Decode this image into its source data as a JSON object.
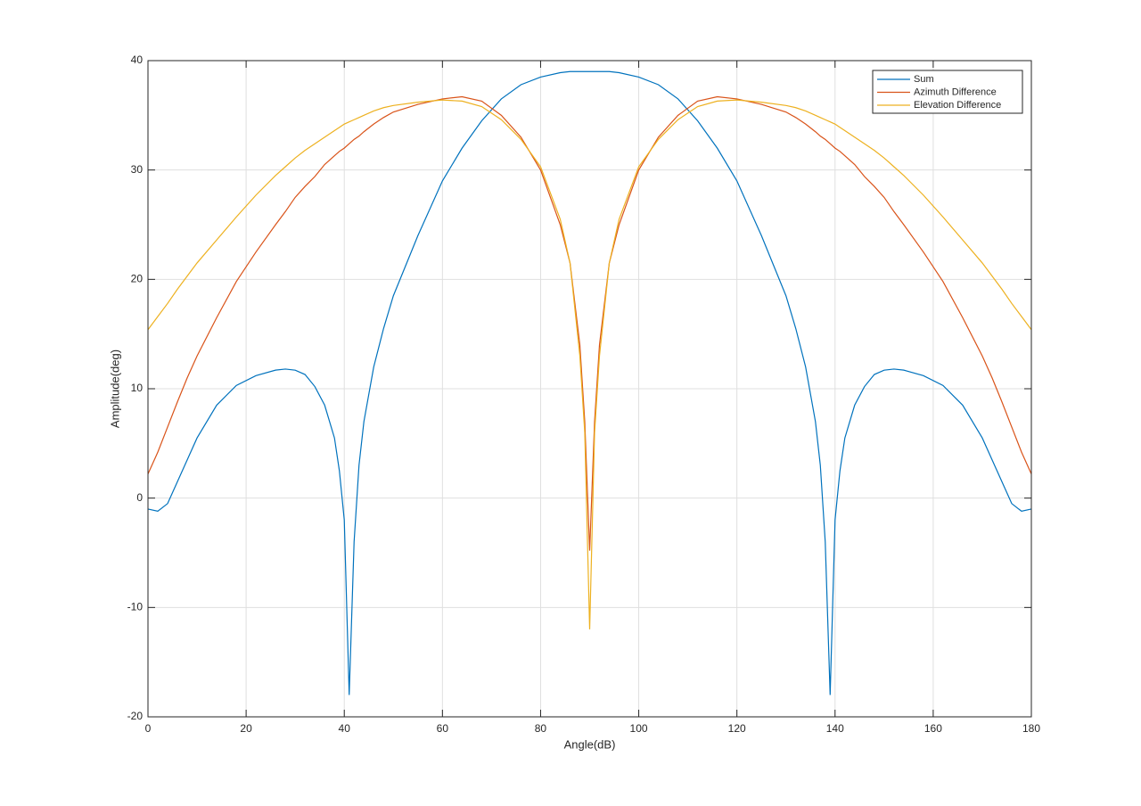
{
  "chart_data": {
    "type": "line",
    "xlabel": "Angle(dB)",
    "ylabel": "Amplitude(deg)",
    "x": [
      0,
      2,
      4,
      6,
      8,
      10,
      14,
      18,
      22,
      26,
      28,
      30,
      32,
      34,
      36,
      38,
      39,
      40,
      41,
      42,
      43,
      44,
      46,
      48,
      50,
      55,
      60,
      64,
      68,
      72,
      76,
      80,
      84,
      86,
      88,
      89,
      90,
      91,
      92,
      94,
      96,
      100,
      104,
      108,
      112,
      116,
      120,
      125,
      130,
      132,
      134,
      136,
      137,
      138,
      139,
      140,
      141,
      142,
      144,
      146,
      148,
      150,
      152,
      154,
      158,
      162,
      166,
      170,
      172,
      174,
      176,
      178,
      180
    ],
    "series": [
      {
        "name": "Sum",
        "color": "#0072bd",
        "values": [
          -1.0,
          -1.2,
          -0.5,
          1.5,
          3.5,
          5.5,
          8.5,
          10.3,
          11.2,
          11.7,
          11.8,
          11.7,
          11.3,
          10.2,
          8.5,
          5.5,
          2.5,
          -2,
          -18,
          -4,
          3,
          7,
          12,
          15.5,
          18.5,
          24,
          29,
          32,
          34.5,
          36.5,
          37.8,
          38.5,
          38.9,
          39,
          39,
          39,
          39,
          39,
          39,
          39,
          38.9,
          38.5,
          37.8,
          36.5,
          34.5,
          32,
          29,
          24,
          18.5,
          15.5,
          12,
          7,
          3,
          -4,
          -18,
          -2,
          2.5,
          5.5,
          8.5,
          10.2,
          11.3,
          11.7,
          11.8,
          11.7,
          11.2,
          10.3,
          8.5,
          5.5,
          3.5,
          1.5,
          -0.5,
          -1.2,
          -1.0
        ]
      },
      {
        "name": "Azimuth Difference",
        "color": "#d95319",
        "values": [
          2.2,
          4.2,
          6.5,
          8.8,
          11,
          13,
          16.5,
          19.8,
          22.5,
          25,
          26.2,
          27.5,
          28.5,
          29.4,
          30.5,
          31.3,
          31.7,
          32,
          32.4,
          32.8,
          33.1,
          33.5,
          34.2,
          34.8,
          35.3,
          36,
          36.5,
          36.7,
          36.3,
          35,
          33,
          30,
          25,
          21.5,
          14,
          7,
          -4.8,
          7,
          14,
          21.5,
          25,
          30,
          33,
          35,
          36.3,
          36.7,
          36.5,
          36,
          35.3,
          34.8,
          34.2,
          33.5,
          33.1,
          32.8,
          32.4,
          32,
          31.7,
          31.3,
          30.5,
          29.4,
          28.5,
          27.5,
          26.2,
          25,
          22.5,
          19.8,
          16.5,
          13,
          11,
          8.8,
          6.5,
          4.2,
          2.2
        ]
      },
      {
        "name": "Elevation Difference",
        "color": "#edb120",
        "values": [
          15.4,
          16.6,
          17.8,
          19.1,
          20.3,
          21.5,
          23.6,
          25.7,
          27.7,
          29.5,
          30.3,
          31.1,
          31.8,
          32.4,
          33,
          33.6,
          33.9,
          34.2,
          34.4,
          34.6,
          34.8,
          35,
          35.4,
          35.7,
          35.9,
          36.2,
          36.4,
          36.3,
          35.8,
          34.6,
          32.8,
          30.3,
          25.5,
          21.5,
          13,
          6,
          -12,
          6,
          13,
          21.5,
          25.5,
          30.3,
          32.8,
          34.6,
          35.8,
          36.3,
          36.4,
          36.2,
          35.9,
          35.7,
          35.4,
          35,
          34.8,
          34.6,
          34.4,
          34.2,
          33.9,
          33.6,
          33,
          32.4,
          31.8,
          31.1,
          30.3,
          29.5,
          27.7,
          25.7,
          23.6,
          21.5,
          20.3,
          19.1,
          17.8,
          16.6,
          15.4
        ]
      }
    ],
    "xlim": [
      0,
      180
    ],
    "xticks": [
      0,
      20,
      40,
      60,
      80,
      100,
      120,
      140,
      160,
      180
    ],
    "ylim": [
      -20,
      40
    ],
    "yticks": [
      -20,
      -10,
      0,
      10,
      20,
      30,
      40
    ],
    "grid": true,
    "legend": "top-right"
  }
}
